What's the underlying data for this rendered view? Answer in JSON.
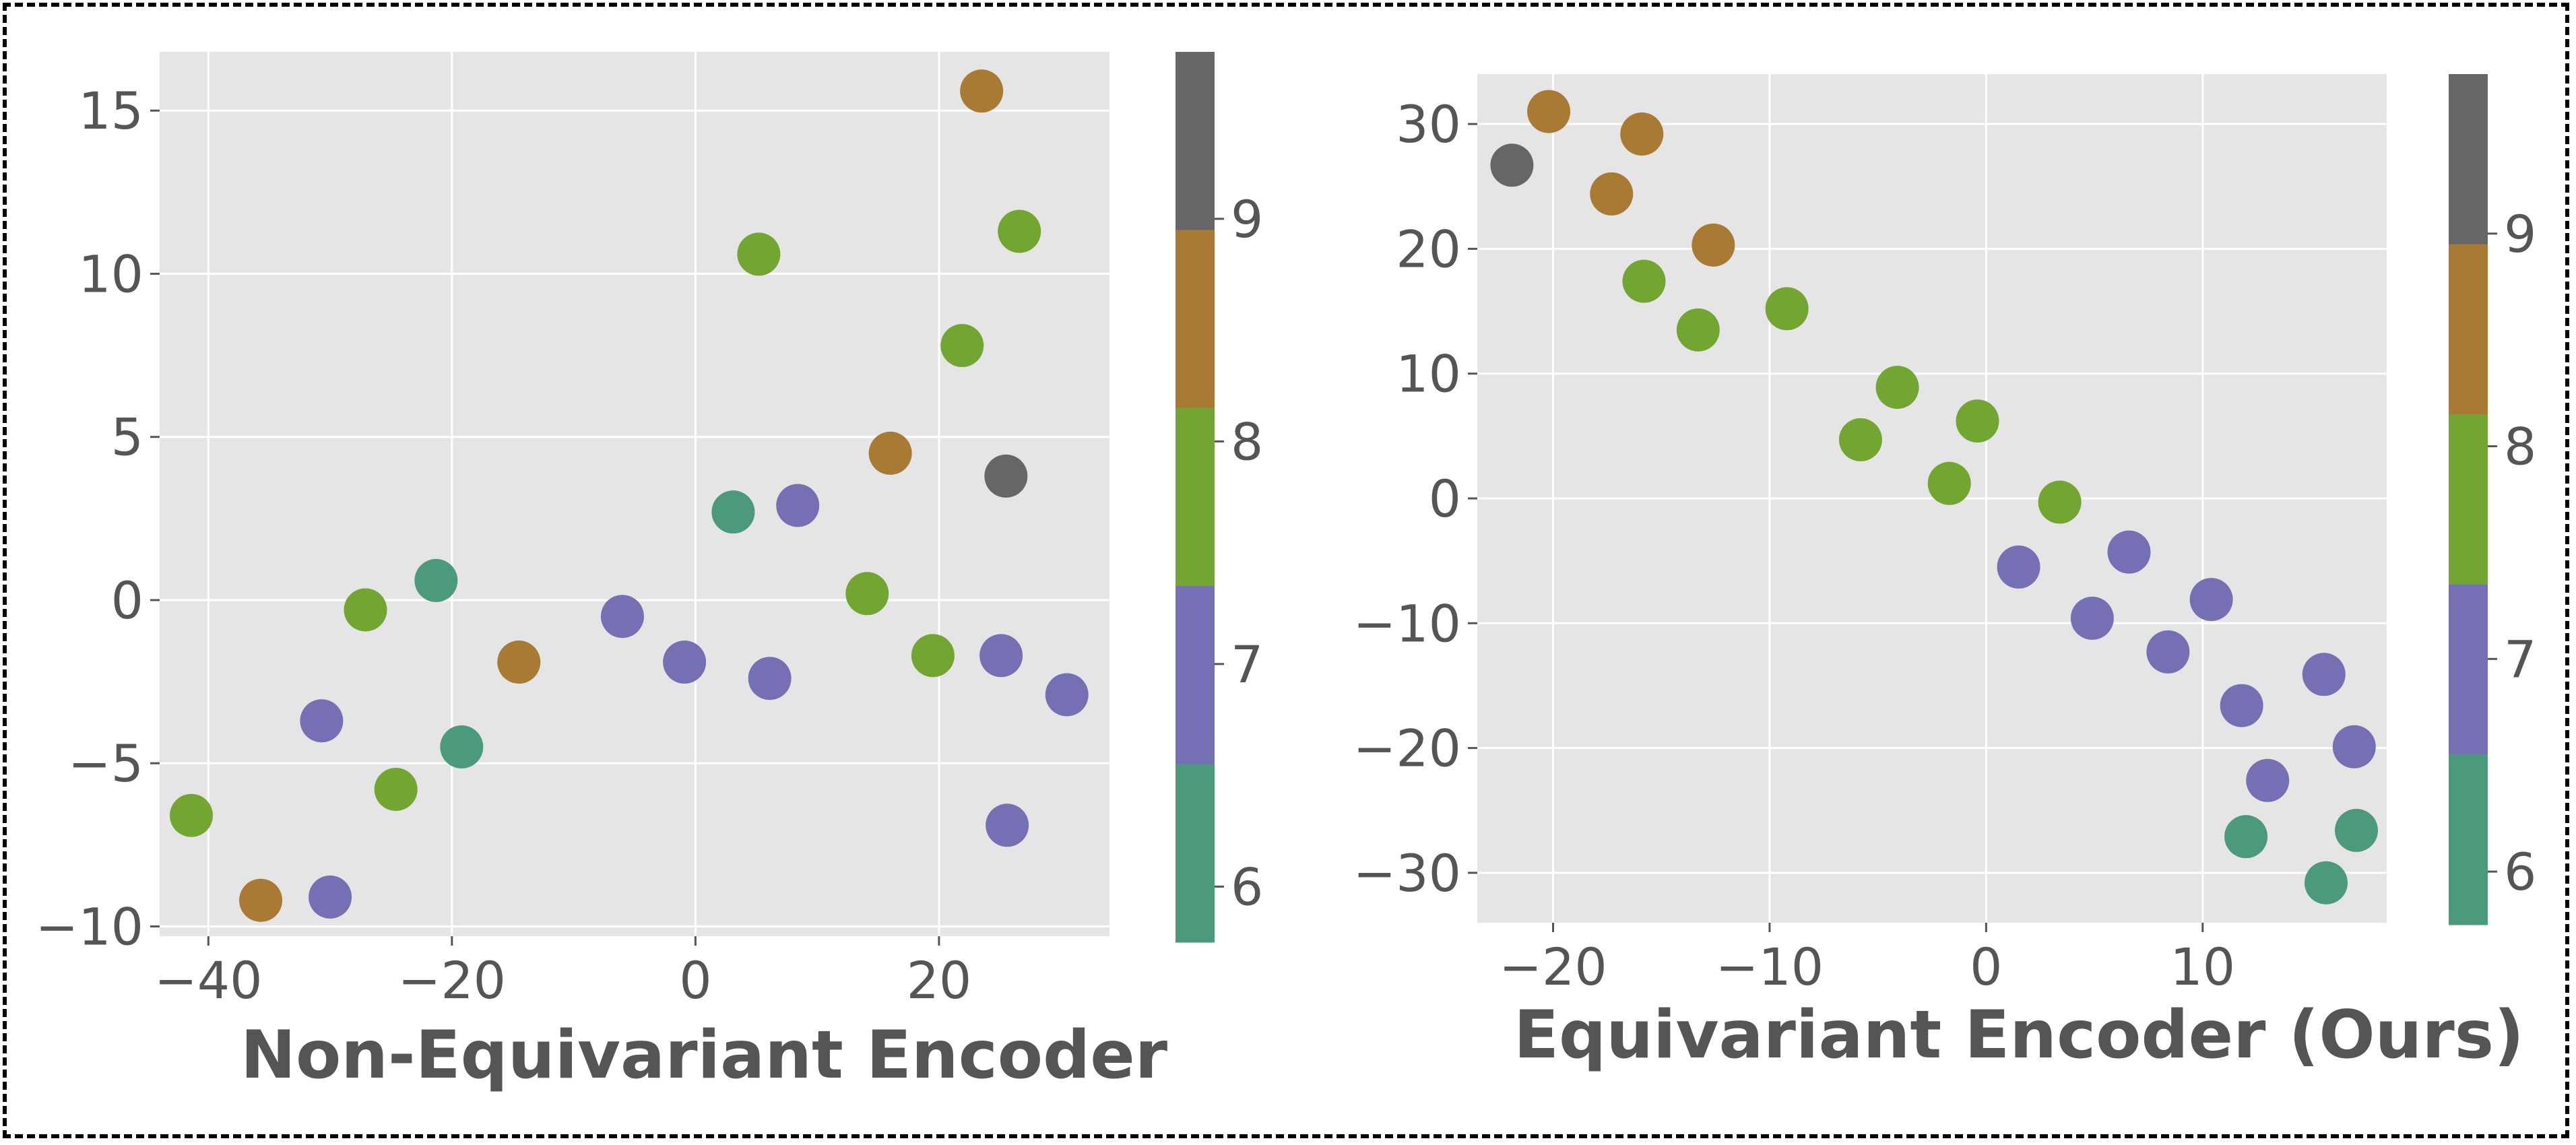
{
  "chart_data": [
    {
      "type": "scatter",
      "xlabel": "Non-Equivariant Encoder",
      "ylabel": "",
      "xlim": [
        -44,
        34
      ],
      "ylim": [
        -10.3,
        16.8
      ],
      "xticks": [
        -40,
        -20,
        0,
        20
      ],
      "yticks": [
        -10,
        -5,
        0,
        5,
        10,
        15
      ],
      "xtick_labels": [
        "−40",
        "−20",
        "0",
        "20"
      ],
      "ytick_labels": [
        "−10",
        "−5",
        "0",
        "5",
        "10",
        "15"
      ],
      "grid": true,
      "colorbar": {
        "range": [
          5.75,
          9.75
        ],
        "ticks": [
          6,
          7,
          8,
          9
        ],
        "tick_labels": [
          "6",
          "7",
          "8",
          "9"
        ]
      },
      "points": [
        {
          "x": -41.4,
          "y": -6.6,
          "c": 8
        },
        {
          "x": -35.7,
          "y": -9.2,
          "c": 9
        },
        {
          "x": -30.7,
          "y": -3.7,
          "c": 7
        },
        {
          "x": -30.0,
          "y": -9.1,
          "c": 7
        },
        {
          "x": -27.1,
          "y": -0.3,
          "c": 8
        },
        {
          "x": -24.6,
          "y": -5.8,
          "c": 8
        },
        {
          "x": -21.3,
          "y": 0.6,
          "c": 6
        },
        {
          "x": -19.2,
          "y": -4.5,
          "c": 6
        },
        {
          "x": -14.5,
          "y": -1.9,
          "c": 9
        },
        {
          "x": -6.0,
          "y": -0.5,
          "c": 7
        },
        {
          "x": -0.9,
          "y": -1.9,
          "c": 7
        },
        {
          "x": 3.1,
          "y": 2.7,
          "c": 6
        },
        {
          "x": 5.2,
          "y": 10.6,
          "c": 8
        },
        {
          "x": 6.1,
          "y": -2.4,
          "c": 7
        },
        {
          "x": 8.4,
          "y": 2.9,
          "c": 7
        },
        {
          "x": 14.1,
          "y": 0.2,
          "c": 8
        },
        {
          "x": 16.0,
          "y": 4.5,
          "c": 9
        },
        {
          "x": 19.5,
          "y": -1.7,
          "c": 8
        },
        {
          "x": 21.9,
          "y": 7.8,
          "c": 8
        },
        {
          "x": 23.5,
          "y": 15.6,
          "c": 9
        },
        {
          "x": 25.1,
          "y": -1.7,
          "c": 7
        },
        {
          "x": 25.5,
          "y": 3.8,
          "c": 10
        },
        {
          "x": 25.6,
          "y": -6.9,
          "c": 7
        },
        {
          "x": 26.6,
          "y": 11.3,
          "c": 8
        },
        {
          "x": 30.5,
          "y": -2.9,
          "c": 7
        }
      ]
    },
    {
      "type": "scatter",
      "xlabel": "Equivariant Encoder (Ours)",
      "ylabel": "",
      "xlim": [
        -23.5,
        18.5
      ],
      "ylim": [
        -34,
        34
      ],
      "xticks": [
        -20,
        -10,
        0,
        10
      ],
      "yticks": [
        -30,
        -20,
        -10,
        0,
        10,
        20,
        30
      ],
      "xtick_labels": [
        "−20",
        "−10",
        "0",
        "10"
      ],
      "ytick_labels": [
        "−30",
        "−20",
        "−10",
        "0",
        "10",
        "20",
        "30"
      ],
      "grid": true,
      "colorbar": {
        "range": [
          5.75,
          9.75
        ],
        "ticks": [
          6,
          7,
          8,
          9
        ],
        "tick_labels": [
          "6",
          "7",
          "8",
          "9"
        ]
      },
      "points": [
        {
          "x": -21.9,
          "y": 26.7,
          "c": 10
        },
        {
          "x": -20.2,
          "y": 31.0,
          "c": 9
        },
        {
          "x": -17.3,
          "y": 24.4,
          "c": 9
        },
        {
          "x": -15.9,
          "y": 29.2,
          "c": 9
        },
        {
          "x": -15.8,
          "y": 17.4,
          "c": 8
        },
        {
          "x": -13.3,
          "y": 13.5,
          "c": 8
        },
        {
          "x": -12.6,
          "y": 20.3,
          "c": 9
        },
        {
          "x": -9.2,
          "y": 15.2,
          "c": 8
        },
        {
          "x": -5.8,
          "y": 4.7,
          "c": 8
        },
        {
          "x": -4.1,
          "y": 8.9,
          "c": 8
        },
        {
          "x": -1.7,
          "y": 1.2,
          "c": 8
        },
        {
          "x": -0.4,
          "y": 6.2,
          "c": 8
        },
        {
          "x": 1.5,
          "y": -5.5,
          "c": 7
        },
        {
          "x": 3.4,
          "y": -0.3,
          "c": 8
        },
        {
          "x": 4.9,
          "y": -9.6,
          "c": 7
        },
        {
          "x": 6.6,
          "y": -4.3,
          "c": 7
        },
        {
          "x": 8.4,
          "y": -12.3,
          "c": 7
        },
        {
          "x": 10.4,
          "y": -8.1,
          "c": 7
        },
        {
          "x": 11.8,
          "y": -16.6,
          "c": 7
        },
        {
          "x": 12.0,
          "y": -27.1,
          "c": 6
        },
        {
          "x": 13.0,
          "y": -22.6,
          "c": 7
        },
        {
          "x": 15.6,
          "y": -14.1,
          "c": 7
        },
        {
          "x": 15.7,
          "y": -30.8,
          "c": 6
        },
        {
          "x": 17.0,
          "y": -19.9,
          "c": 7
        },
        {
          "x": 17.1,
          "y": -26.6,
          "c": 6
        }
      ]
    }
  ],
  "colors": {
    "panel_bg": "#e5e5e5",
    "grid": "#ffffff",
    "text": "#555555",
    "class_6": "#4c9a7c",
    "class_7": "#7570b3",
    "class_8": "#73a533",
    "class_9": "#a87a33",
    "class_10": "#666666"
  }
}
